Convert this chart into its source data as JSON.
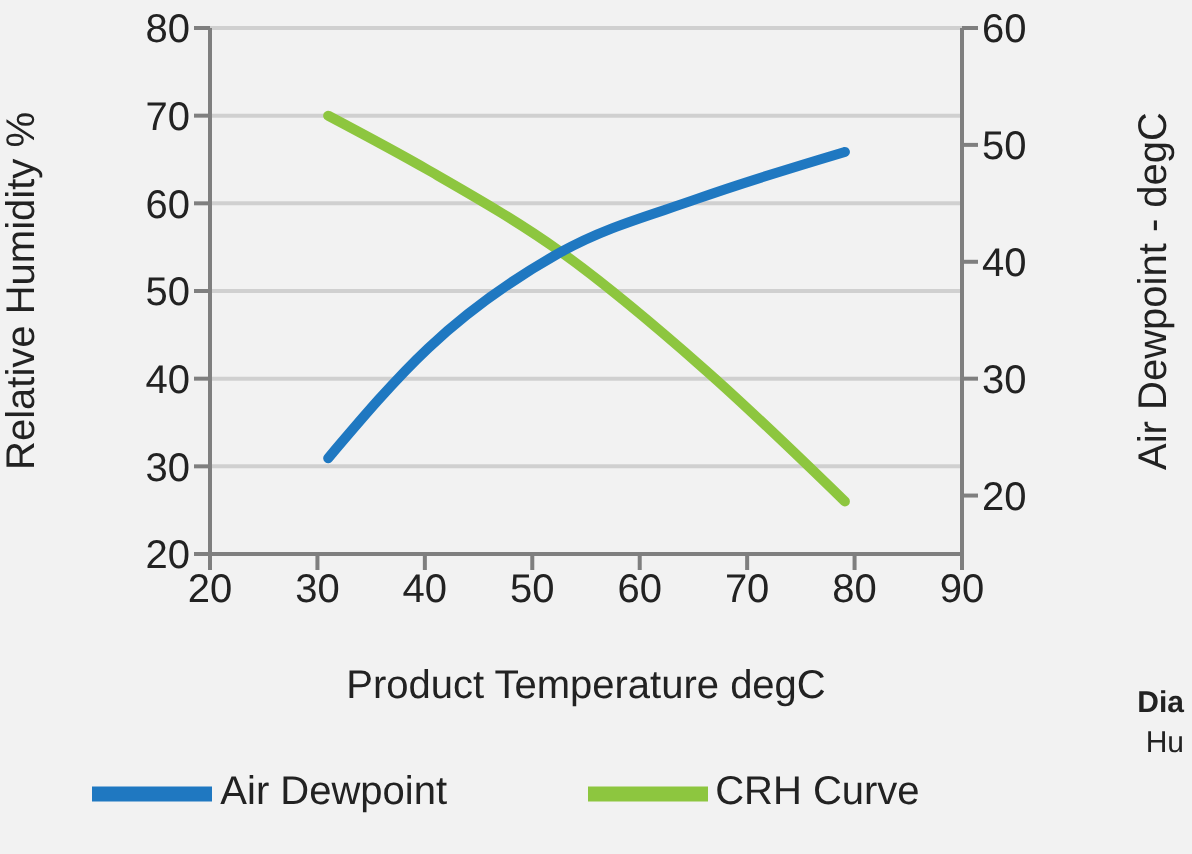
{
  "chart_data": {
    "type": "line",
    "xlabel": "Product Temperature degC",
    "ylabel": "Relative Humidity %",
    "y2label": "Air Dewpoint - degC",
    "xlim": [
      20,
      90
    ],
    "xticks": [
      20,
      30,
      40,
      50,
      60,
      70,
      80,
      90
    ],
    "ylim": [
      20,
      80
    ],
    "yticks": [
      20,
      30,
      40,
      50,
      60,
      70,
      80
    ],
    "y2lim": [
      15,
      60
    ],
    "y2ticks": [
      20,
      30,
      40,
      50,
      60
    ],
    "grid": "y",
    "legend": "bottom",
    "marker": "none",
    "line_style": "solid",
    "annotations": [
      "Dia",
      "Hu"
    ],
    "series": [
      {
        "name": "CRH Curve",
        "color": "#8dc63f",
        "x": [
          31,
          40.3,
          52.6,
          66.1,
          79.1
        ],
        "values": [
          70,
          63.8,
          54.5,
          41,
          26
        ]
      },
      {
        "name": "Air Dewpoint",
        "color": "#1f78c1",
        "axis": "y2",
        "x": [
          31,
          40.3,
          52.6,
          65.4,
          79.1
        ],
        "values": [
          23.2,
          32.6,
          40.8,
          45.4,
          49.4
        ]
      }
    ]
  }
}
